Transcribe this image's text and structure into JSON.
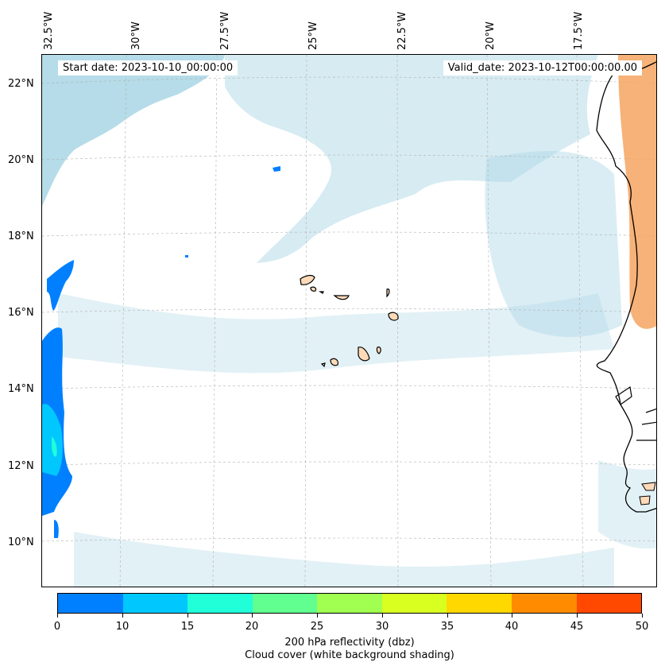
{
  "header": {
    "start_date": "Start date: 2023-10-10_00:00:00",
    "valid_date": "Valid_date: 2023-10-12T00:00:00.00"
  },
  "axes": {
    "lon_labels": [
      "32.5°W",
      "30°W",
      "27.5°W",
      "25°W",
      "22.5°W",
      "20°W",
      "17.5°W"
    ],
    "lat_labels": [
      "22°N",
      "20°N",
      "18°N",
      "16°N",
      "14°N",
      "12°N",
      "10°N"
    ]
  },
  "colorbar": {
    "ticks": [
      "0",
      "10",
      "15",
      "20",
      "25",
      "30",
      "35",
      "40",
      "45",
      "50"
    ],
    "colors": [
      "#0080ff",
      "#00c8ff",
      "#20ffd8",
      "#60ff90",
      "#a0ff50",
      "#d8ff20",
      "#ffd800",
      "#ff8c00",
      "#ff4800"
    ],
    "label": "200 hPa reflectivity (dbz)",
    "sublabel": "Cloud cover (white background shading)"
  },
  "colors": {
    "cloud": "#add8e6",
    "land": "#ffdab9",
    "desert": "#f4a460",
    "coast": "#000000",
    "grid": "#b0b0b0"
  }
}
